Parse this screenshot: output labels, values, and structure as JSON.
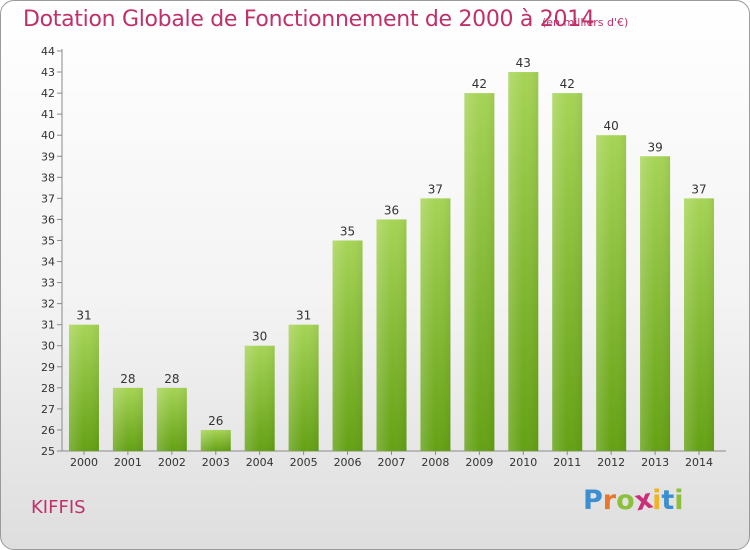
{
  "header": {
    "title": "Dotation Globale de Fonctionnement de 2000 à 2014",
    "unit": "(en milliers d'€)"
  },
  "footer": {
    "commune": "KIFFIS"
  },
  "logo": {
    "letters": [
      "P",
      "r",
      "o",
      "x",
      "i",
      "t",
      "i"
    ],
    "colors": [
      "#3b8fd0",
      "#e7772a",
      "#8cc03a",
      "#cc2f7a",
      "#f0b323",
      "#3b8fd0",
      "#8cc03a"
    ]
  },
  "colors": {
    "bar_top": "#a6d456",
    "bar_bottom": "#64a114",
    "text": "#c0306a"
  },
  "chart_data": {
    "type": "bar",
    "categories": [
      "2000",
      "2001",
      "2002",
      "2003",
      "2004",
      "2005",
      "2006",
      "2007",
      "2008",
      "2009",
      "2010",
      "2011",
      "2012",
      "2013",
      "2014"
    ],
    "values": [
      31,
      28,
      28,
      26,
      30,
      31,
      35,
      36,
      37,
      42,
      43,
      42,
      40,
      39,
      37
    ],
    "title": "Dotation Globale de Fonctionnement de 2000 à 2014",
    "subtitle": "(en milliers d'€)",
    "xlabel": "",
    "ylabel": "",
    "ylim": [
      25,
      44
    ],
    "yticks": [
      25,
      26,
      27,
      28,
      29,
      30,
      31,
      32,
      33,
      34,
      35,
      36,
      37,
      38,
      39,
      40,
      41,
      42,
      43,
      44
    ],
    "grid": false,
    "legend": "none",
    "data_labels": true
  }
}
